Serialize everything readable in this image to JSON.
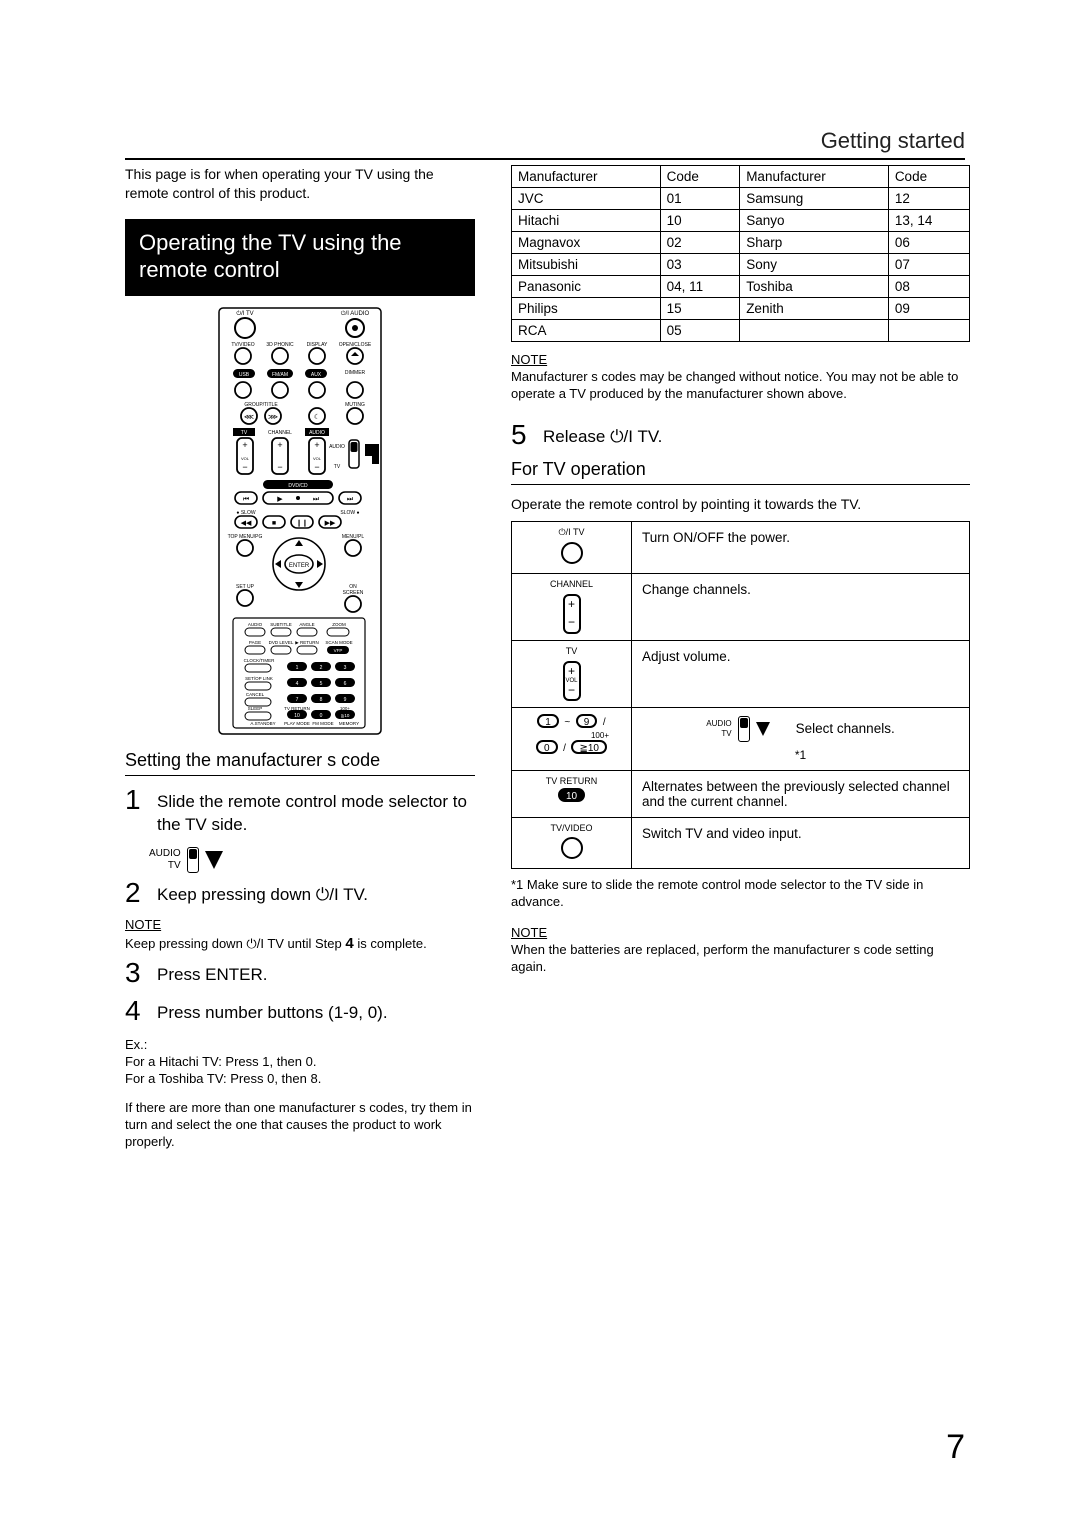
{
  "header": {
    "section": "Getting started"
  },
  "intro": "This page is for when operating your TV using the remote control of this product.",
  "black_heading": "Operating the TV using the remote control",
  "subhead_setting": "Setting the manufacturer s code",
  "steps_left": {
    "s1": "Slide the remote control mode selector to the TV side.",
    "s2_pre": "Keep pressing down ",
    "s2_post": "TV.",
    "s3": "Press ENTER.",
    "s4": "Press number buttons (1-9, 0)."
  },
  "switch_labels": {
    "audio": "AUDIO",
    "tv": "TV"
  },
  "note1_label": "NOTE",
  "note1_body_pre": "Keep pressing down ",
  "note1_body_mid": " TV until Step ",
  "note1_step": "4",
  "note1_body_post": " is complete.",
  "ex_label": "Ex.:",
  "ex_line1": "For a Hitachi TV: Press 1, then 0.",
  "ex_line2": "For a Toshiba TV: Press 0, then 8.",
  "ex_para": "If there are more than one manufacturer s codes, try them in turn and select the one that causes the product to work properly.",
  "mfr_headers": {
    "m1": "Manufacturer",
    "c1": "Code",
    "m2": "Manufacturer",
    "c2": "Code"
  },
  "mfr_rows": [
    [
      "JVC",
      "01",
      "Samsung",
      "12"
    ],
    [
      "Hitachi",
      "10",
      "Sanyo",
      "13, 14"
    ],
    [
      "Magnavox",
      "02",
      "Sharp",
      "06"
    ],
    [
      "Mitsubishi",
      "03",
      "Sony",
      "07"
    ],
    [
      "Panasonic",
      "04, 11",
      "Toshiba",
      "08"
    ],
    [
      "Philips",
      "15",
      "Zenith",
      "09"
    ],
    [
      "RCA",
      "05",
      "",
      ""
    ]
  ],
  "note2_label": "NOTE",
  "note2_body": "Manufacturer s codes may be changed without notice. You may not be able to operate a TV produced by the manufacturer shown above.",
  "step5_pre": "Release ",
  "step5_post": "TV.",
  "subhead_op": "For TV operation",
  "op_intro": "Operate the remote control by pointing it towards the TV.",
  "op_rows": {
    "r1_icon": "⏻/I TV",
    "r1_text": "Turn ON/OFF the power.",
    "r2_icon": "CHANNEL",
    "r2_text": "Change channels.",
    "r3_icon_top": "TV",
    "r3_icon_bot": "VOL",
    "r3_text": "Adjust volume.",
    "r4_text": "Select channels.",
    "r4_foot": "*1",
    "r4_sw_audio": "AUDIO",
    "r4_sw_tv": "TV",
    "r4_num1": "1",
    "r4_num9": "9",
    "r4_num0": "0",
    "r4_ge10": "≧10",
    "r4_100": "100+",
    "r5_icon": "TV RETURN",
    "r5_text": "Alternates between the previously selected channel and the current channel.",
    "r6_icon": "TV/VIDEO",
    "r6_text": "Switch TV and video input."
  },
  "footnote1": "*1 Make sure to slide the remote control mode selector to the TV side in advance.",
  "note3_label": "NOTE",
  "note3_body": "When the batteries are replaced, perform the manufacturer s code setting again.",
  "page_number": "7",
  "power_symbol": "⏻/I"
}
